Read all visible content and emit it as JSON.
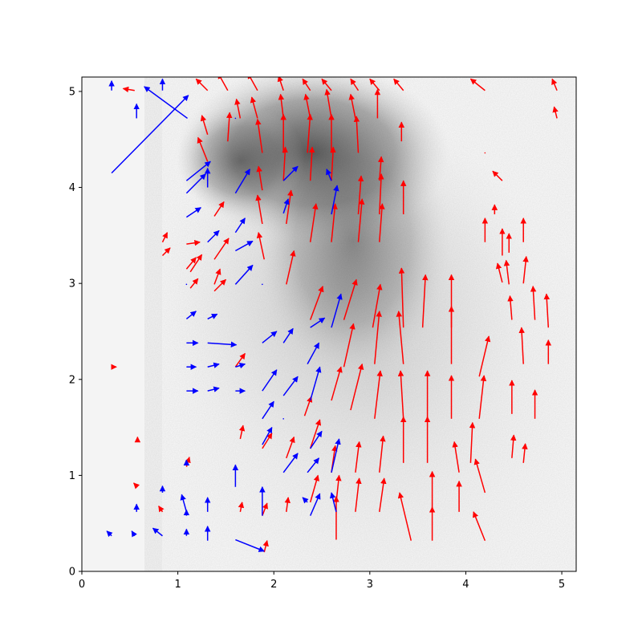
{
  "chart_data": {
    "type": "quiver",
    "title": "",
    "xlabel": "",
    "ylabel": "",
    "xlim": [
      0,
      5.15
    ],
    "ylim": [
      0,
      5.15
    ],
    "grid": false,
    "legend": false,
    "background": "grayscale microscopy image",
    "x_ticks": [
      "0",
      "1",
      "2",
      "3",
      "4",
      "5"
    ],
    "y_ticks": [
      "0",
      "1",
      "2",
      "3",
      "4",
      "5"
    ],
    "colors": {
      "red": "#ff0000",
      "blue": "#0000ff",
      "axis": "#000000"
    },
    "series": [
      {
        "color": "red",
        "vectors": [
          [
            0.34,
            2.13,
            0.02,
            0.0
          ],
          [
            0.58,
            1.38,
            0.0,
            0.02
          ],
          [
            0.58,
            0.88,
            -0.04,
            0.04
          ],
          [
            0.84,
            0.62,
            -0.04,
            0.06
          ],
          [
            0.84,
            3.29,
            0.08,
            0.08
          ],
          [
            0.84,
            3.43,
            0.05,
            0.1
          ],
          [
            0.55,
            5.01,
            -0.12,
            0.02
          ],
          [
            1.09,
            1.09,
            0.03,
            0.1
          ],
          [
            1.09,
            3.41,
            0.14,
            0.02
          ],
          [
            1.09,
            3.15,
            0.1,
            0.12
          ],
          [
            1.31,
            5.01,
            -0.12,
            0.12
          ],
          [
            1.31,
            4.55,
            -0.06,
            0.2
          ],
          [
            1.31,
            4.27,
            -0.1,
            0.25
          ],
          [
            1.13,
            2.95,
            0.08,
            0.1
          ],
          [
            1.13,
            3.12,
            0.12,
            0.18
          ],
          [
            1.38,
            2.92,
            0.12,
            0.12
          ],
          [
            1.52,
            5.01,
            -0.1,
            0.18
          ],
          [
            1.65,
            4.72,
            -0.04,
            0.2
          ],
          [
            1.52,
            4.48,
            0.02,
            0.3
          ],
          [
            1.38,
            3.7,
            0.1,
            0.15
          ],
          [
            1.38,
            3.25,
            0.15,
            0.22
          ],
          [
            1.38,
            2.99,
            0.06,
            0.16
          ],
          [
            1.6,
            2.13,
            0.1,
            0.14
          ],
          [
            1.65,
            1.38,
            0.03,
            0.14
          ],
          [
            1.65,
            0.62,
            0.02,
            0.1
          ],
          [
            1.83,
            5.01,
            -0.1,
            0.18
          ],
          [
            1.83,
            4.72,
            -0.06,
            0.22
          ],
          [
            1.88,
            4.36,
            -0.05,
            0.35
          ],
          [
            1.88,
            3.97,
            -0.04,
            0.25
          ],
          [
            1.88,
            3.62,
            -0.05,
            0.3
          ],
          [
            1.9,
            3.25,
            -0.06,
            0.28
          ],
          [
            1.88,
            1.28,
            0.1,
            0.16
          ],
          [
            1.88,
            0.58,
            0.05,
            0.13
          ],
          [
            1.9,
            0.2,
            0.03,
            0.12
          ],
          [
            2.1,
            5.01,
            -0.05,
            0.15
          ],
          [
            2.1,
            4.72,
            -0.03,
            0.25
          ],
          [
            2.1,
            4.36,
            0.0,
            0.4
          ],
          [
            2.1,
            4.07,
            0.02,
            0.35
          ],
          [
            2.13,
            3.62,
            0.05,
            0.35
          ],
          [
            2.13,
            2.99,
            0.08,
            0.35
          ],
          [
            2.13,
            1.18,
            0.08,
            0.22
          ],
          [
            2.13,
            0.62,
            0.02,
            0.15
          ],
          [
            2.38,
            5.01,
            -0.08,
            0.12
          ],
          [
            2.38,
            4.72,
            -0.05,
            0.25
          ],
          [
            2.35,
            4.36,
            0.03,
            0.4
          ],
          [
            2.38,
            4.07,
            0.02,
            0.35
          ],
          [
            2.38,
            3.43,
            0.06,
            0.4
          ],
          [
            2.38,
            2.62,
            0.13,
            0.35
          ],
          [
            2.32,
            1.62,
            0.07,
            0.2
          ],
          [
            2.38,
            1.28,
            0.1,
            0.3
          ],
          [
            2.38,
            0.72,
            0.08,
            0.28
          ],
          [
            2.6,
            5.01,
            -0.1,
            0.12
          ],
          [
            2.6,
            4.72,
            -0.05,
            0.3
          ],
          [
            2.6,
            4.36,
            0.0,
            0.4
          ],
          [
            2.6,
            4.07,
            0.02,
            0.35
          ],
          [
            2.6,
            3.43,
            0.04,
            0.4
          ],
          [
            2.6,
            1.78,
            0.1,
            0.35
          ],
          [
            2.6,
            1.03,
            0.04,
            0.28
          ],
          [
            2.65,
            0.33,
            0.0,
            0.45
          ],
          [
            2.65,
            0.72,
            0.03,
            0.28
          ],
          [
            2.88,
            5.01,
            -0.08,
            0.12
          ],
          [
            2.85,
            4.72,
            -0.05,
            0.25
          ],
          [
            2.88,
            4.36,
            -0.02,
            0.38
          ],
          [
            2.88,
            3.72,
            0.03,
            0.4
          ],
          [
            2.88,
            3.43,
            0.04,
            0.45
          ],
          [
            2.73,
            2.62,
            0.13,
            0.42
          ],
          [
            2.73,
            2.13,
            0.1,
            0.45
          ],
          [
            2.8,
            1.68,
            0.12,
            0.48
          ],
          [
            2.85,
            1.03,
            0.04,
            0.32
          ],
          [
            2.85,
            0.62,
            0.04,
            0.35
          ],
          [
            3.1,
            5.01,
            -0.1,
            0.12
          ],
          [
            3.08,
            4.72,
            0.0,
            0.3
          ],
          [
            3.1,
            4.07,
            0.02,
            0.25
          ],
          [
            3.1,
            3.72,
            0.02,
            0.42
          ],
          [
            3.1,
            3.43,
            0.03,
            0.4
          ],
          [
            3.03,
            2.54,
            0.08,
            0.45
          ],
          [
            3.05,
            2.16,
            0.05,
            0.55
          ],
          [
            3.05,
            1.59,
            0.06,
            0.5
          ],
          [
            3.1,
            1.03,
            0.04,
            0.38
          ],
          [
            3.1,
            0.62,
            0.05,
            0.35
          ],
          [
            3.35,
            5.01,
            -0.1,
            0.12
          ],
          [
            3.33,
            4.48,
            0.0,
            0.2
          ],
          [
            3.35,
            3.72,
            0.0,
            0.35
          ],
          [
            3.35,
            2.54,
            -0.02,
            0.62
          ],
          [
            3.35,
            2.16,
            -0.05,
            0.55
          ],
          [
            3.35,
            1.59,
            -0.03,
            0.5
          ],
          [
            3.35,
            1.13,
            0.0,
            0.48
          ],
          [
            3.43,
            0.32,
            -0.12,
            0.5
          ],
          [
            3.55,
            2.54,
            0.03,
            0.55
          ],
          [
            3.6,
            1.59,
            0.0,
            0.5
          ],
          [
            3.6,
            1.13,
            0.0,
            0.48
          ],
          [
            3.65,
            0.62,
            0.0,
            0.42
          ],
          [
            3.65,
            0.32,
            0.0,
            0.35
          ],
          [
            3.85,
            2.54,
            0.0,
            0.55
          ],
          [
            3.85,
            2.16,
            0.0,
            0.6
          ],
          [
            3.85,
            1.59,
            0.0,
            0.45
          ],
          [
            3.93,
            1.03,
            -0.05,
            0.32
          ],
          [
            3.93,
            0.62,
            0.0,
            0.32
          ],
          [
            4.2,
            5.01,
            -0.15,
            0.12
          ],
          [
            4.14,
            2.03,
            0.1,
            0.42
          ],
          [
            4.14,
            1.59,
            0.05,
            0.45
          ],
          [
            4.2,
            0.82,
            -0.1,
            0.35
          ],
          [
            4.05,
            1.13,
            0.02,
            0.42
          ],
          [
            4.2,
            0.32,
            -0.12,
            0.3
          ],
          [
            4.2,
            3.43,
            0.0,
            0.25
          ],
          [
            4.3,
            3.72,
            0.0,
            0.1
          ],
          [
            4.38,
            4.07,
            -0.1,
            0.1
          ],
          [
            4.38,
            3.29,
            0.0,
            0.28
          ],
          [
            4.38,
            3.01,
            -0.05,
            0.2
          ],
          [
            4.48,
            1.64,
            0.0,
            0.35
          ],
          [
            4.48,
            1.18,
            0.02,
            0.24
          ],
          [
            4.45,
            3.32,
            0.0,
            0.2
          ],
          [
            4.45,
            2.99,
            -0.03,
            0.25
          ],
          [
            4.48,
            2.62,
            -0.02,
            0.25
          ],
          [
            4.6,
            3.43,
            0.0,
            0.25
          ],
          [
            4.6,
            3.0,
            0.03,
            0.28
          ],
          [
            4.72,
            2.62,
            -0.02,
            0.35
          ],
          [
            4.6,
            2.16,
            -0.02,
            0.38
          ],
          [
            4.72,
            1.59,
            0.0,
            0.3
          ],
          [
            4.6,
            1.13,
            0.02,
            0.2
          ],
          [
            4.86,
            2.54,
            -0.02,
            0.35
          ],
          [
            4.86,
            2.16,
            0.0,
            0.25
          ],
          [
            4.95,
            5.01,
            -0.05,
            0.12
          ],
          [
            4.95,
            4.72,
            -0.03,
            0.12
          ],
          [
            4.2,
            4.36,
            0.0,
            0.0
          ]
        ]
      },
      {
        "color": "blue",
        "vectors": [
          [
            0.31,
            5.01,
            0.0,
            0.1
          ],
          [
            0.57,
            4.72,
            0.0,
            0.15
          ],
          [
            0.84,
            5.01,
            0.0,
            0.12
          ],
          [
            0.31,
            4.15,
            0.8,
            0.81
          ],
          [
            1.1,
            4.72,
            -0.45,
            0.33
          ],
          [
            0.31,
            0.37,
            -0.05,
            0.05
          ],
          [
            0.55,
            0.37,
            -0.03,
            0.05
          ],
          [
            0.84,
            0.37,
            -0.1,
            0.08
          ],
          [
            0.57,
            0.62,
            0.0,
            0.08
          ],
          [
            0.84,
            0.82,
            0.0,
            0.07
          ],
          [
            1.09,
            0.37,
            0.0,
            0.07
          ],
          [
            1.09,
            0.58,
            0.0,
            0.06
          ],
          [
            1.09,
            0.62,
            -0.05,
            0.18
          ],
          [
            1.09,
            1.13,
            0.0,
            0.03
          ],
          [
            1.09,
            2.13,
            0.1,
            0.0
          ],
          [
            1.09,
            1.88,
            0.12,
            0.0
          ],
          [
            1.09,
            2.38,
            0.12,
            0.0
          ],
          [
            1.09,
            2.63,
            0.1,
            0.08
          ],
          [
            1.09,
            2.99,
            0.0,
            0.0
          ],
          [
            1.09,
            3.69,
            0.15,
            0.1
          ],
          [
            1.09,
            3.94,
            0.2,
            0.2
          ],
          [
            1.09,
            4.07,
            0.25,
            0.2
          ],
          [
            1.31,
            2.13,
            0.12,
            0.03
          ],
          [
            1.31,
            1.88,
            0.12,
            0.03
          ],
          [
            1.31,
            2.38,
            0.3,
            -0.02
          ],
          [
            1.31,
            2.63,
            0.1,
            0.05
          ],
          [
            1.31,
            3.43,
            0.12,
            0.12
          ],
          [
            1.31,
            0.62,
            0.0,
            0.15
          ],
          [
            1.31,
            0.32,
            0.0,
            0.15
          ],
          [
            1.31,
            4.0,
            0.0,
            0.2
          ],
          [
            1.6,
            1.88,
            0.1,
            0.0
          ],
          [
            1.6,
            2.13,
            0.1,
            0.03
          ],
          [
            1.6,
            0.88,
            0.0,
            0.23
          ],
          [
            1.6,
            0.33,
            0.3,
            -0.12
          ],
          [
            1.6,
            2.99,
            0.18,
            0.2
          ],
          [
            1.6,
            3.34,
            0.18,
            0.1
          ],
          [
            1.6,
            3.53,
            0.1,
            0.15
          ],
          [
            1.6,
            3.94,
            0.15,
            0.25
          ],
          [
            1.6,
            4.72,
            0.0,
            0.0
          ],
          [
            1.88,
            1.59,
            0.12,
            0.18
          ],
          [
            1.88,
            1.32,
            0.1,
            0.18
          ],
          [
            1.88,
            0.58,
            0.0,
            0.3
          ],
          [
            1.88,
            1.88,
            0.15,
            0.22
          ],
          [
            1.88,
            2.38,
            0.15,
            0.12
          ],
          [
            1.88,
            2.99,
            0.0,
            0.0
          ],
          [
            2.1,
            1.03,
            0.15,
            0.2
          ],
          [
            2.1,
            1.59,
            0.0,
            0.0
          ],
          [
            2.1,
            1.83,
            0.15,
            0.2
          ],
          [
            2.1,
            2.38,
            0.1,
            0.15
          ],
          [
            2.1,
            3.73,
            0.05,
            0.15
          ],
          [
            2.1,
            4.07,
            0.15,
            0.15
          ],
          [
            2.35,
            1.03,
            0.12,
            0.15
          ],
          [
            2.35,
            0.72,
            -0.05,
            0.05
          ],
          [
            2.35,
            2.16,
            0.12,
            0.22
          ],
          [
            2.38,
            0.58,
            0.1,
            0.23
          ],
          [
            2.38,
            1.28,
            0.12,
            0.18
          ],
          [
            2.38,
            1.78,
            0.1,
            0.35
          ],
          [
            2.38,
            2.54,
            0.15,
            0.1
          ],
          [
            2.6,
            2.54,
            0.1,
            0.35
          ],
          [
            2.6,
            1.03,
            0.08,
            0.35
          ],
          [
            2.65,
            0.62,
            -0.05,
            0.2
          ],
          [
            2.6,
            3.72,
            0.06,
            0.3
          ],
          [
            2.6,
            4.07,
            -0.05,
            0.12
          ]
        ]
      }
    ]
  }
}
